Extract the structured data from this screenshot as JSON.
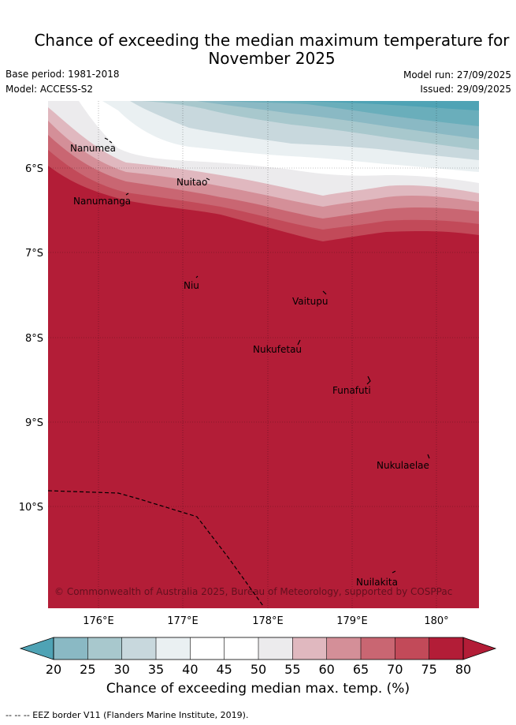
{
  "header": {
    "title_line1": "Chance of exceeding the median maximum temperature for",
    "title_line2": "November 2025",
    "base_period": "Base period: 1981-2018",
    "model": "Model: ACCESS-S2",
    "model_run": "Model run: 27/09/2025",
    "issued": "Issued: 29/09/2025"
  },
  "map": {
    "lat_labels": [
      "6°S",
      "7°S",
      "8°S",
      "9°S",
      "10°S"
    ],
    "lon_labels": [
      "176°E",
      "177°E",
      "178°E",
      "179°E",
      "180°"
    ],
    "places": [
      "Nanumea",
      "Nuitao",
      "Nanumanga",
      "Niu",
      "Vaitupu",
      "Nukufetau",
      "Funafuti",
      "Nukulaelae",
      "Nuilakita"
    ],
    "copyright": "© Commonwealth of Australia 2025, Bureau of Meteorology, supported by COSPPac",
    "dominant_value_range": "75-80+"
  },
  "colorbar": {
    "ticks": [
      "20",
      "25",
      "30",
      "35",
      "40",
      "45",
      "50",
      "55",
      "60",
      "65",
      "70",
      "75",
      "80"
    ],
    "colors": [
      "#6aaebb",
      "#8ab9c4",
      "#a8c8cd",
      "#c8d8dd",
      "#eaf0f2",
      "#ffffff",
      "#ffffff",
      "#ecebed",
      "#e0b8bf",
      "#d48f98",
      "#c96672",
      "#c24a59",
      "#b31d37"
    ],
    "low_extend_color": "#4fa3b5",
    "high_extend_color": "#b31d37",
    "title": "Chance of exceeding median max. temp. (%)"
  },
  "footnote": "--  --  -- EEZ border V11 (Flanders Marine Institute, 2019)."
}
